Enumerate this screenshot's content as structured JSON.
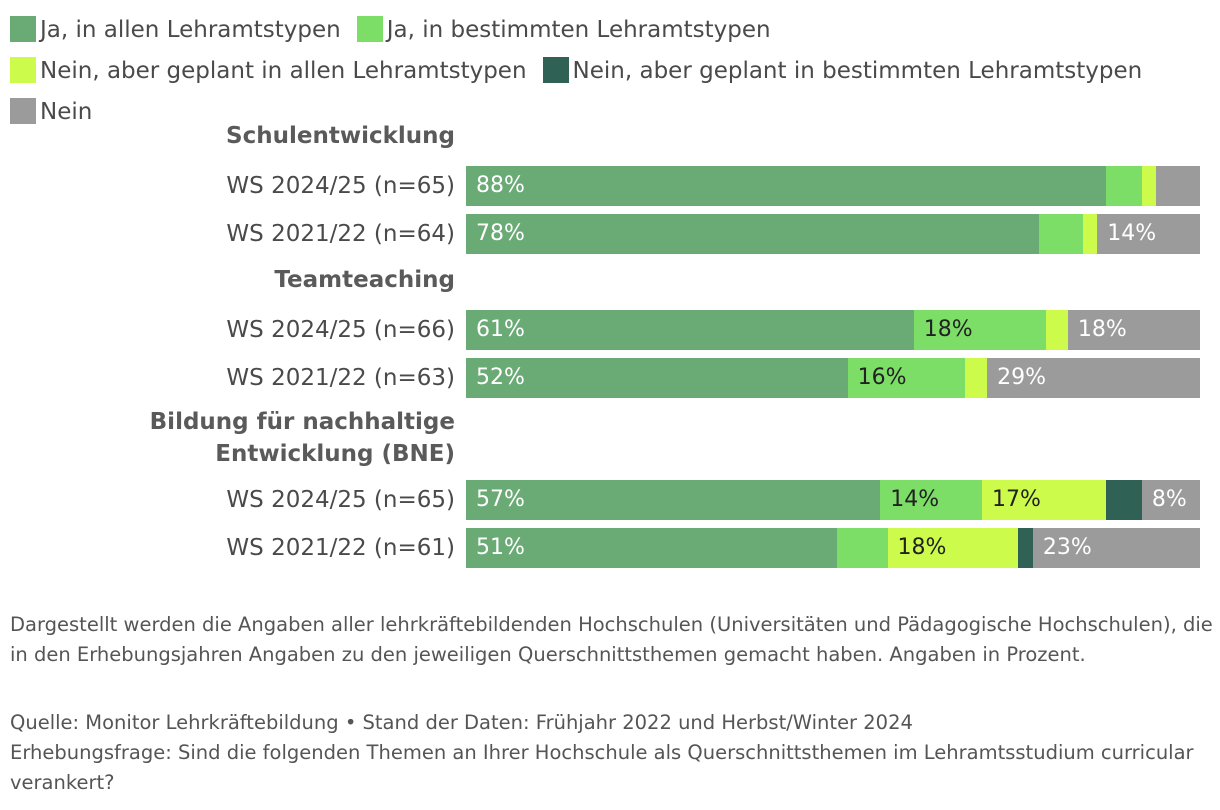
{
  "chart_data": {
    "type": "bar",
    "orientation": "horizontal-stacked",
    "value_unit": "%",
    "legend": [
      {
        "name": "Ja, in allen Lehramtstypen",
        "color": "#6aaa75"
      },
      {
        "name": "Ja, in bestimmten Lehramtstypen",
        "color": "#7cde66"
      },
      {
        "name": "Nein, aber geplant in allen Lehramtstypen",
        "color": "#ccfb4b"
      },
      {
        "name": "Nein, aber geplant in bestimmten Lehramtstypen",
        "color": "#2f6154"
      },
      {
        "name": "Nein",
        "color": "#9b9b9b"
      }
    ],
    "groups": [
      {
        "title": "Schulentwicklung",
        "rows": [
          {
            "label": "WS 2024/25 (n=65)",
            "values": [
              88,
              5,
              2,
              0,
              6
            ],
            "labels": [
              "88%",
              "",
              "",
              "",
              ""
            ]
          },
          {
            "label": "WS 2021/22 (n=64)",
            "values": [
              78,
              6,
              2,
              0,
              14
            ],
            "labels": [
              "78%",
              "",
              "",
              "",
              "14%"
            ]
          }
        ]
      },
      {
        "title": "Teamteaching",
        "rows": [
          {
            "label": "WS 2024/25 (n=66)",
            "values": [
              61,
              18,
              3,
              0,
              18
            ],
            "labels": [
              "61%",
              "18%",
              "",
              "",
              "18%"
            ]
          },
          {
            "label": "WS 2021/22 (n=63)",
            "values": [
              52,
              16,
              3,
              0,
              29
            ],
            "labels": [
              "52%",
              "16%",
              "",
              "",
              "29%"
            ]
          }
        ]
      },
      {
        "title": "Bildung für nachhaltige Entwicklung (BNE)",
        "rows": [
          {
            "label": "WS 2024/25 (n=65)",
            "values": [
              57,
              14,
              17,
              5,
              8
            ],
            "labels": [
              "57%",
              "14%",
              "17%",
              "",
              "8%"
            ]
          },
          {
            "label": "WS 2021/22 (n=61)",
            "values": [
              51,
              7,
              18,
              2,
              23
            ],
            "labels": [
              "51%",
              "",
              "18%",
              "",
              "23%"
            ]
          }
        ]
      }
    ]
  },
  "footnote": "Dargestellt werden die Angaben aller lehrkräftebildenden Hochschulen (Universitäten und Pädagogische Hochschulen), die in den Erhebungsjahren Angaben zu den jeweiligen Querschnittsthemen gemacht haben. Angaben in Prozent.",
  "source": "Quelle: Monitor Lehrkräftebildung • Stand der Daten: Frühjahr 2022 und Herbst/Winter 2024",
  "question": "Erhebungsfrage: Sind die folgenden Themen an Ihrer Hochschule als Querschnittsthemen im Lehramtsstudium curricular verankert?"
}
